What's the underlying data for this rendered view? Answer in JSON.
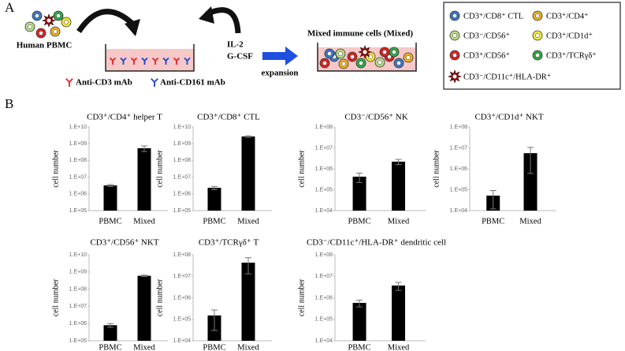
{
  "panel_a": {
    "label": "A",
    "source": "Human PBMC",
    "cytokines": [
      "IL-2",
      "G-CSF"
    ],
    "antibodies": [
      {
        "name": "Anti-CD3 mAb",
        "color": "#e8202a"
      },
      {
        "name": "Anti-CD161 mAb",
        "color": "#1f3fd0"
      }
    ],
    "step": "expansion",
    "result": "Mixed immune cells (Mixed)",
    "legend": [
      {
        "name": "CD3⁺/CD8⁺ CTL",
        "color": "#3a78c8"
      },
      {
        "name": "CD3⁺/CD4⁺",
        "color": "#f0b020"
      },
      {
        "name": "CD3⁻/CD56⁺",
        "color": "#b8dc88"
      },
      {
        "name": "CD3⁺/CD1d⁺",
        "color": "#f8e838"
      },
      {
        "name": "CD3⁺/CD56⁺",
        "color": "#e02020"
      },
      {
        "name": "CD3⁺/TCRγδ⁺",
        "color": "#30a848"
      },
      {
        "name": "CD3⁻/CD11c⁺/HLA-DR⁺",
        "color": "#8a1010"
      }
    ]
  },
  "panel_b_label": "B",
  "chart_data": [
    {
      "type": "bar",
      "title": "CD3⁺/CD4⁺ helper T",
      "ylabel": "cell number",
      "log": true,
      "color": "#000000",
      "categories": [
        "PBMC",
        "Mixed"
      ],
      "values": [
        3200000,
        540000000
      ],
      "errors": [
        400000,
        200000000
      ],
      "ylim": [
        100000,
        10000000000
      ],
      "yticks": [
        {
          "value": 100000,
          "label": "1.E+05"
        },
        {
          "value": 1000000,
          "label": "1.E+06"
        },
        {
          "value": 10000000,
          "label": "1.E+07"
        },
        {
          "value": 100000000,
          "label": "1.E+08"
        },
        {
          "value": 1000000000,
          "label": "1.E+09"
        },
        {
          "value": 10000000000,
          "label": "1.E+10"
        }
      ]
    },
    {
      "type": "bar",
      "title": "CD3⁺/CD8⁺ CTL",
      "ylabel": "cell number",
      "log": true,
      "color": "#000000",
      "categories": [
        "PBMC",
        "Mixed"
      ],
      "values": [
        2300000,
        2700000000
      ],
      "errors": [
        500000,
        300000000
      ],
      "ylim": [
        100000,
        10000000000
      ],
      "yticks": [
        {
          "value": 100000,
          "label": "1.E+05"
        },
        {
          "value": 1000000,
          "label": "1.E+06"
        },
        {
          "value": 10000000,
          "label": "1.E+07"
        },
        {
          "value": 100000000,
          "label": "1.E+08"
        },
        {
          "value": 1000000000,
          "label": "1.E+09"
        },
        {
          "value": 10000000000,
          "label": "1.E+10"
        }
      ]
    },
    {
      "type": "bar",
      "title": "CD3⁻/CD56⁺ NK",
      "ylabel": "cell number",
      "log": true,
      "color": "#000000",
      "categories": [
        "PBMC",
        "Mixed"
      ],
      "values": [
        420000,
        2200000
      ],
      "errors": [
        200000,
        600000
      ],
      "ylim": [
        10000,
        100000000
      ],
      "yticks": [
        {
          "value": 10000,
          "label": "1.E+04"
        },
        {
          "value": 100000,
          "label": "1.E+05"
        },
        {
          "value": 1000000,
          "label": "1.E+06"
        },
        {
          "value": 10000000,
          "label": "1.E+07"
        },
        {
          "value": 100000000,
          "label": "1.E+08"
        }
      ]
    },
    {
      "type": "bar",
      "title": "CD3⁺/CD1d⁺ NKT",
      "ylabel": "cell number",
      "log": true,
      "color": "#000000",
      "categories": [
        "PBMC",
        "Mixed"
      ],
      "values": [
        52000,
        5600000
      ],
      "errors": [
        40000,
        5000000
      ],
      "ylim": [
        10000,
        100000000
      ],
      "yticks": [
        {
          "value": 10000,
          "label": "1.E+04"
        },
        {
          "value": 100000,
          "label": "1.E+05"
        },
        {
          "value": 1000000,
          "label": "1.E+06"
        },
        {
          "value": 10000000,
          "label": "1.E+07"
        },
        {
          "value": 100000000,
          "label": "1.E+08"
        }
      ]
    },
    {
      "type": "bar",
      "title": "CD3⁺/CD56⁺ NKT",
      "ylabel": "cell number",
      "log": true,
      "color": "#000000",
      "categories": [
        "PBMC",
        "Mixed"
      ],
      "values": [
        800000,
        600000000
      ],
      "errors": [
        200000,
        50000000
      ],
      "ylim": [
        100000,
        10000000000
      ],
      "yticks": [
        {
          "value": 100000,
          "label": "1.E+05"
        },
        {
          "value": 1000000,
          "label": "1.E+06"
        },
        {
          "value": 10000000,
          "label": "1.E+07"
        },
        {
          "value": 100000000,
          "label": "1.E+08"
        },
        {
          "value": 1000000000,
          "label": "1.E+09"
        },
        {
          "value": 10000000000,
          "label": "1.E+10"
        }
      ]
    },
    {
      "type": "bar",
      "title": "CD3⁺/TCRγδ⁺ T",
      "ylabel": "cell number",
      "log": true,
      "color": "#000000",
      "categories": [
        "PBMC",
        "Mixed"
      ],
      "values": [
        150000,
        43000000
      ],
      "errors": [
        120000,
        30000000
      ],
      "ylim": [
        10000,
        100000000
      ],
      "yticks": [
        {
          "value": 10000,
          "label": "1.E+04"
        },
        {
          "value": 100000,
          "label": "1.E+05"
        },
        {
          "value": 1000000,
          "label": "1.E+06"
        },
        {
          "value": 10000000,
          "label": "1.E+07"
        },
        {
          "value": 100000000,
          "label": "1.E+08"
        }
      ]
    },
    {
      "type": "bar",
      "title": "CD3⁻/CD11c⁺/HLA-DR⁺ dendritic cell",
      "ylabel": "cell number",
      "log": true,
      "color": "#000000",
      "categories": [
        "PBMC",
        "Mixed"
      ],
      "values": [
        580000,
        3700000
      ],
      "errors": [
        200000,
        1500000
      ],
      "ylim": [
        10000,
        100000000
      ],
      "yticks": [
        {
          "value": 10000,
          "label": "1.E+04"
        },
        {
          "value": 100000,
          "label": "1.E+05"
        },
        {
          "value": 1000000,
          "label": "1.E+06"
        },
        {
          "value": 10000000,
          "label": "1.E+07"
        },
        {
          "value": 100000000,
          "label": "1.E+08"
        }
      ]
    }
  ]
}
